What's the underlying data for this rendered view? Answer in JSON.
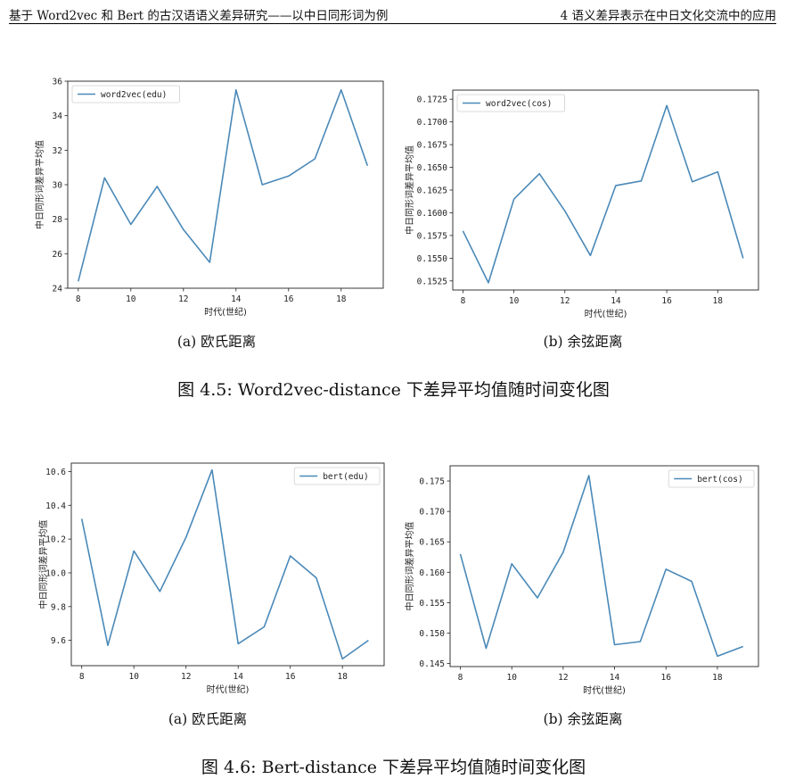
{
  "header": {
    "left": "基于 Word2vec 和 Bert 的古汉语语义差异研究——以中日同形词为例",
    "right": "4   语义差异表示在中日文化交流中的应用"
  },
  "figures": [
    {
      "caption": "图 4.5: Word2vec-distance 下差异平均值随时间变化图",
      "subcaptions": [
        "(a) 欧氏距离",
        "(b) 余弦距离"
      ]
    },
    {
      "caption": "图 4.6: Bert-distance 下差异平均值随时间变化图",
      "subcaptions": [
        "(a) 欧氏距离",
        "(b) 余弦距离"
      ]
    }
  ],
  "colors": {
    "line": "#4a89b8",
    "axes": "#222222"
  },
  "chart_data": [
    {
      "type": "line",
      "title": "",
      "xlabel": "时代(世纪)",
      "ylabel": "中日同形词差异平均值",
      "legend": "top-left",
      "grid": false,
      "x": [
        8,
        9,
        10,
        11,
        12,
        13,
        14,
        15,
        16,
        17,
        18,
        19
      ],
      "xlim": [
        7.6,
        19.6
      ],
      "xticks": [
        8,
        10,
        12,
        14,
        16,
        18
      ],
      "ylim": [
        24.0,
        36.0
      ],
      "yticks": [
        24,
        26,
        28,
        30,
        32,
        34,
        36
      ],
      "ytick_labels": [
        "24",
        "26",
        "28",
        "30",
        "32",
        "34",
        "36"
      ],
      "series": [
        {
          "name": "word2vec(edu)",
          "values": [
            24.4,
            30.4,
            27.7,
            29.9,
            27.4,
            25.5,
            35.5,
            30.0,
            30.5,
            31.5,
            35.5,
            31.1
          ]
        }
      ]
    },
    {
      "type": "line",
      "title": "",
      "xlabel": "时代(世纪)",
      "ylabel": "中日同形词差异平均值",
      "legend": "top-left",
      "grid": false,
      "x": [
        8,
        9,
        10,
        11,
        12,
        13,
        14,
        15,
        16,
        17,
        18,
        19
      ],
      "xlim": [
        7.6,
        19.6
      ],
      "xticks": [
        8,
        10,
        12,
        14,
        16,
        18
      ],
      "ylim": [
        0.1515,
        0.1735
      ],
      "yticks": [
        0.1525,
        0.155,
        0.1575,
        0.16,
        0.1625,
        0.165,
        0.1675,
        0.17,
        0.1725
      ],
      "ytick_labels": [
        "0.1525",
        "0.1550",
        "0.1575",
        "0.1600",
        "0.1625",
        "0.1650",
        "0.1675",
        "0.1700",
        "0.1725"
      ],
      "series": [
        {
          "name": "word2vec(cos)",
          "values": [
            0.158,
            0.1523,
            0.1615,
            0.1643,
            0.1602,
            0.1553,
            0.163,
            0.1635,
            0.1718,
            0.1634,
            0.1645,
            0.155
          ]
        }
      ]
    },
    {
      "type": "line",
      "title": "",
      "xlabel": "时代(世纪)",
      "ylabel": "中日同形词差异平均值",
      "legend": "top-right",
      "grid": false,
      "x": [
        8,
        9,
        10,
        11,
        12,
        13,
        14,
        15,
        16,
        17,
        18,
        19
      ],
      "xlim": [
        7.6,
        19.6
      ],
      "xticks": [
        8,
        10,
        12,
        14,
        16,
        18
      ],
      "ylim": [
        9.45,
        10.65
      ],
      "yticks": [
        9.6,
        9.8,
        10.0,
        10.2,
        10.4,
        10.6
      ],
      "ytick_labels": [
        "9.6",
        "9.8",
        "10.0",
        "10.2",
        "10.4",
        "10.6"
      ],
      "series": [
        {
          "name": "bert(edu)",
          "values": [
            10.32,
            9.57,
            10.13,
            9.89,
            10.21,
            10.61,
            9.58,
            9.68,
            10.1,
            9.97,
            9.49,
            9.6
          ]
        }
      ]
    },
    {
      "type": "line",
      "title": "",
      "xlabel": "时代(世纪)",
      "ylabel": "中日同形词差异平均值",
      "legend": "top-right",
      "grid": false,
      "x": [
        8,
        9,
        10,
        11,
        12,
        13,
        14,
        15,
        16,
        17,
        18,
        19
      ],
      "xlim": [
        7.6,
        19.6
      ],
      "xticks": [
        8,
        10,
        12,
        14,
        16,
        18
      ],
      "ylim": [
        0.1445,
        0.1775
      ],
      "yticks": [
        0.145,
        0.15,
        0.155,
        0.16,
        0.165,
        0.17,
        0.175
      ],
      "ytick_labels": [
        "0.145",
        "0.150",
        "0.155",
        "0.160",
        "0.165",
        "0.170",
        "0.175"
      ],
      "series": [
        {
          "name": "bert(cos)",
          "values": [
            0.163,
            0.1475,
            0.1614,
            0.1558,
            0.1633,
            0.1759,
            0.1481,
            0.1486,
            0.1605,
            0.1585,
            0.1462,
            0.1478
          ]
        }
      ]
    }
  ]
}
